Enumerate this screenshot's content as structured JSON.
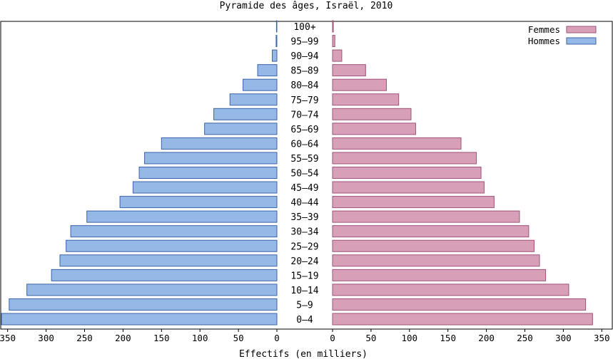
{
  "chart_data": {
    "type": "bar",
    "orientation": "horizontal-butterfly",
    "title": "Pyramide des âges, Israël, 2010",
    "xlabel": "Effectifs (en milliers)",
    "categories": [
      "0-4",
      "5-9",
      "10-14",
      "15-19",
      "20-24",
      "25-29",
      "30-34",
      "35-39",
      "40-44",
      "45-49",
      "50-54",
      "55-59",
      "60-64",
      "65-69",
      "70-74",
      "75-79",
      "80-84",
      "85-89",
      "90-94",
      "95-99",
      "100+"
    ],
    "series": [
      {
        "name": "Femmes",
        "color": "#d8a0b8",
        "edge": "#a0527a",
        "side": "right",
        "values": [
          338,
          329,
          307,
          277,
          269,
          262,
          255,
          243,
          210,
          197,
          193,
          187,
          167,
          108,
          102,
          86,
          70,
          43,
          12,
          3,
          1
        ]
      },
      {
        "name": "Hommes",
        "color": "#96b8e6",
        "edge": "#3b64a8",
        "side": "left",
        "values": [
          358,
          348,
          325,
          293,
          282,
          274,
          268,
          247,
          204,
          187,
          179,
          172,
          150,
          94,
          82,
          61,
          44,
          25,
          6,
          1,
          0.5
        ]
      }
    ],
    "xticks": [
      0,
      50,
      100,
      150,
      200,
      250,
      300,
      350
    ],
    "xlim": [
      0,
      350
    ],
    "legend_position": "top-right",
    "grid": false
  }
}
